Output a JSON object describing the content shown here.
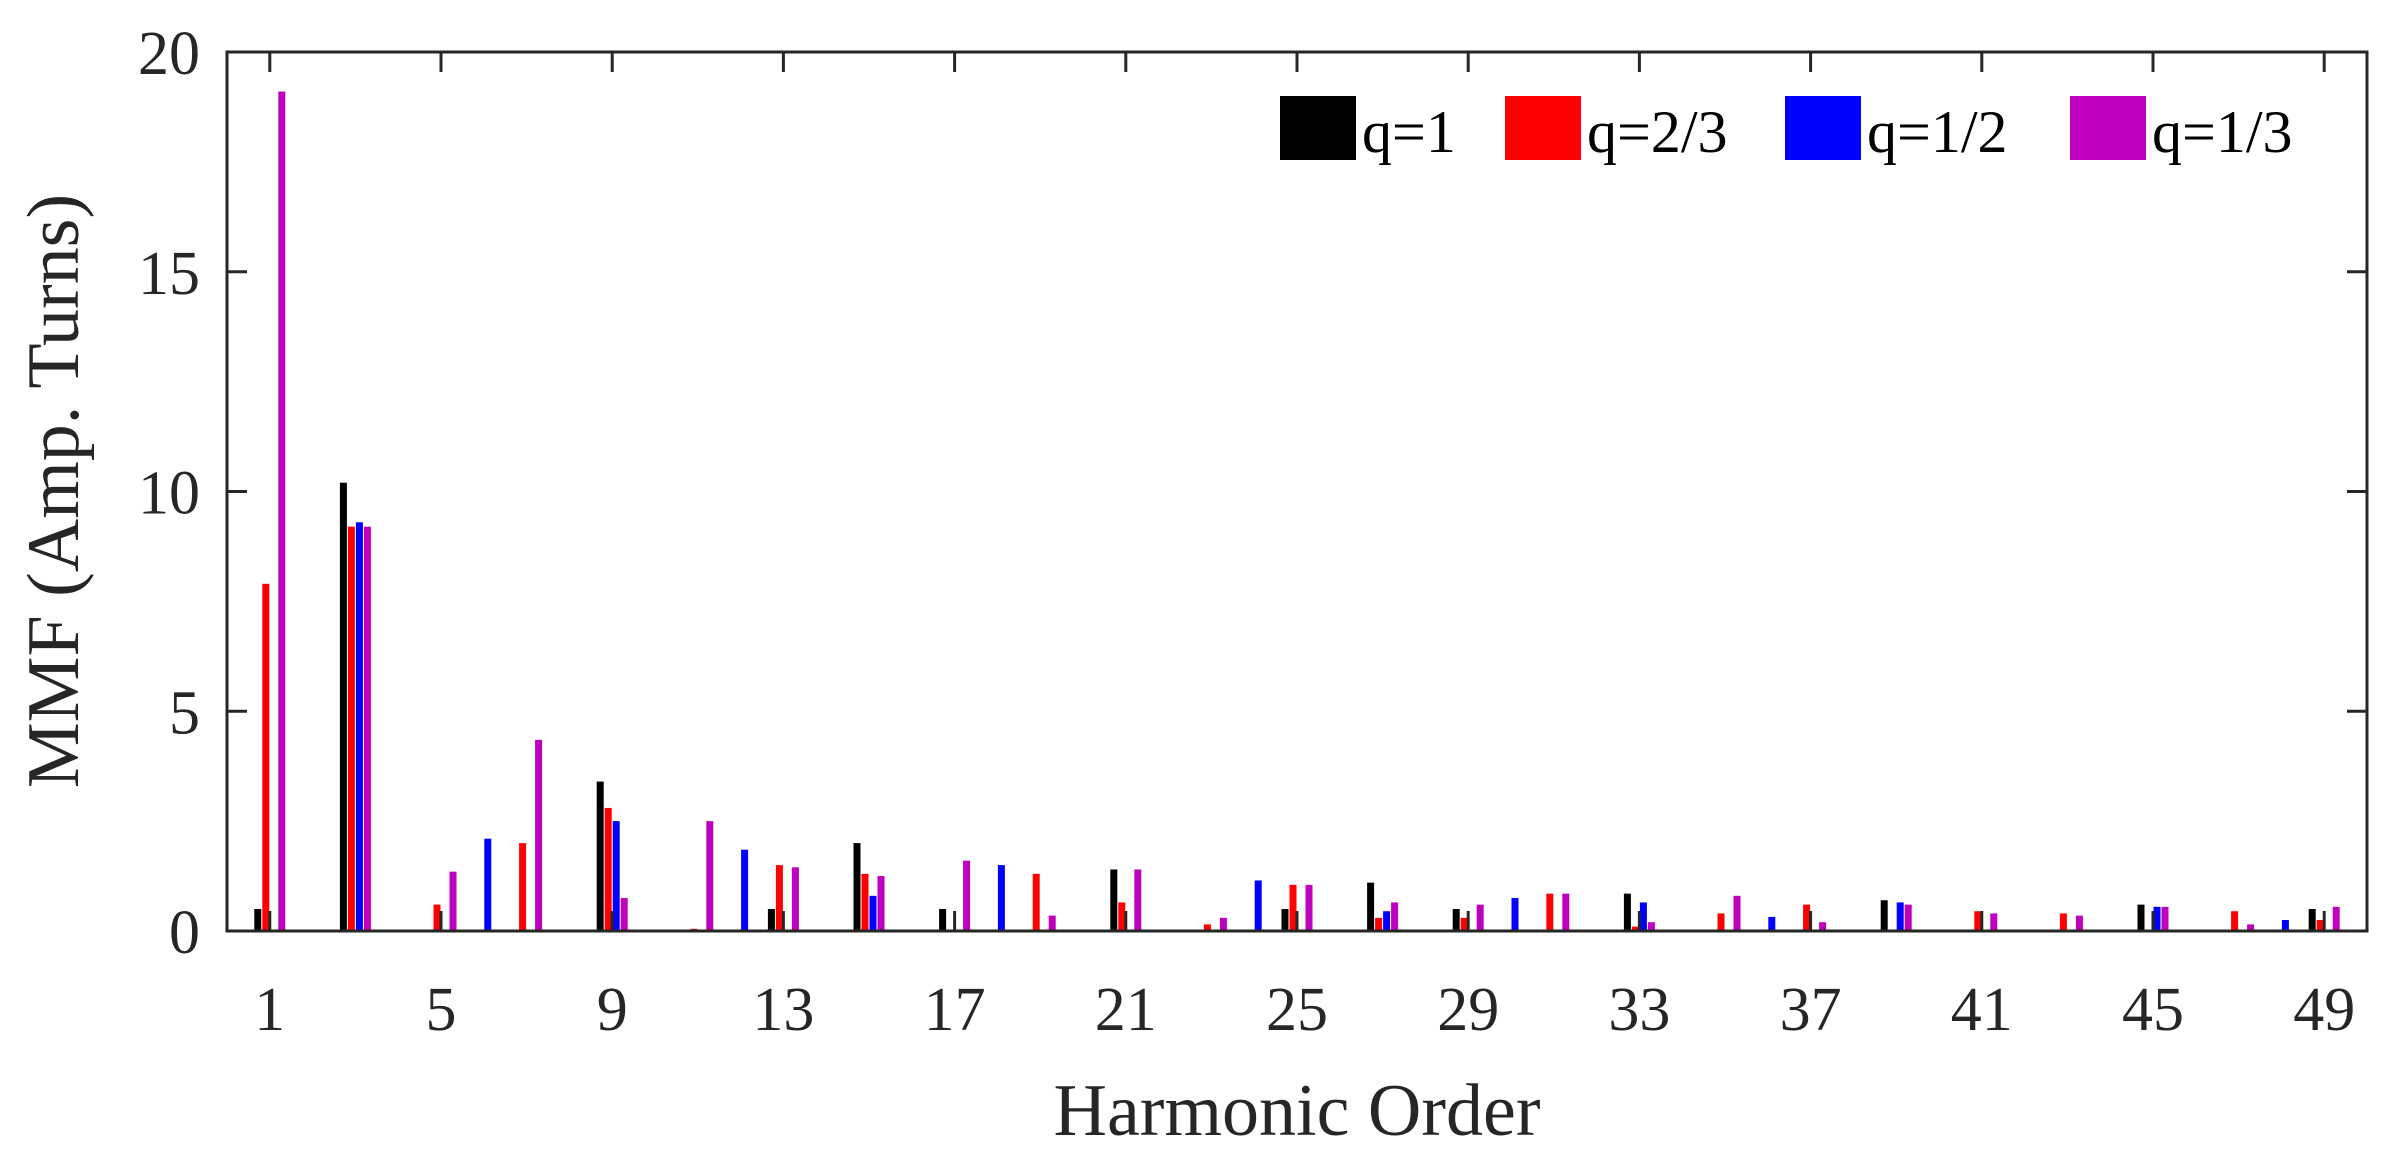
{
  "chart_data": {
    "type": "bar",
    "xlabel": "Harmonic Order",
    "ylabel": "MMF (Amp. Turns)",
    "xlim": [
      0,
      50
    ],
    "ylim": [
      0,
      20
    ],
    "xticks": [
      1,
      5,
      9,
      13,
      17,
      21,
      25,
      29,
      33,
      37,
      41,
      45,
      49
    ],
    "yticks": [
      0,
      5,
      10,
      15,
      20
    ],
    "grid": false,
    "legend_position": "top-right",
    "x": [
      1,
      3,
      5,
      6,
      7,
      9,
      11,
      12,
      13,
      15,
      17,
      18,
      19,
      21,
      23,
      24,
      25,
      27,
      29,
      30,
      31,
      33,
      35,
      36,
      37,
      39,
      41,
      43,
      45,
      47,
      48,
      49
    ],
    "series": [
      {
        "name": "q=1",
        "color": "#000000",
        "values": [
          0.5,
          10.2,
          0,
          0,
          0,
          3.4,
          0,
          0,
          0.5,
          2.0,
          0.5,
          0,
          0,
          1.4,
          0,
          0,
          0.5,
          1.1,
          0.5,
          0,
          0,
          0.85,
          0,
          0,
          0,
          0.7,
          0,
          0,
          0.6,
          0,
          0,
          0.5
        ]
      },
      {
        "name": "q=2/3",
        "color": "#ff0000",
        "values": [
          7.9,
          9.2,
          0.6,
          0,
          2.0,
          2.8,
          0.05,
          0,
          1.5,
          1.3,
          0,
          0,
          1.3,
          0.65,
          0.15,
          0,
          1.05,
          0.3,
          0.3,
          0,
          0.85,
          0.1,
          0.4,
          0,
          0.6,
          0,
          0.45,
          0.4,
          0,
          0.45,
          0,
          0.25
        ]
      },
      {
        "name": "q=1/2",
        "color": "#0000ff",
        "values": [
          0,
          9.3,
          0,
          2.1,
          0,
          2.5,
          0,
          1.85,
          0,
          0.8,
          0,
          1.5,
          0,
          0,
          0,
          1.15,
          0,
          0.45,
          0,
          0.75,
          0,
          0.65,
          0,
          0.32,
          0,
          0.65,
          0,
          0,
          0.55,
          0,
          0.25,
          0
        ]
      },
      {
        "name": "q=1/3",
        "color": "#bf00bf",
        "values": [
          19.1,
          9.2,
          1.35,
          0,
          4.35,
          0.75,
          2.5,
          0,
          1.45,
          1.25,
          1.6,
          0,
          0.35,
          1.4,
          0.3,
          0,
          1.05,
          0.65,
          0.6,
          0,
          0.85,
          0.2,
          0.8,
          0,
          0.2,
          0.6,
          0.4,
          0.35,
          0.55,
          0.15,
          0,
          0.55
        ]
      }
    ]
  }
}
